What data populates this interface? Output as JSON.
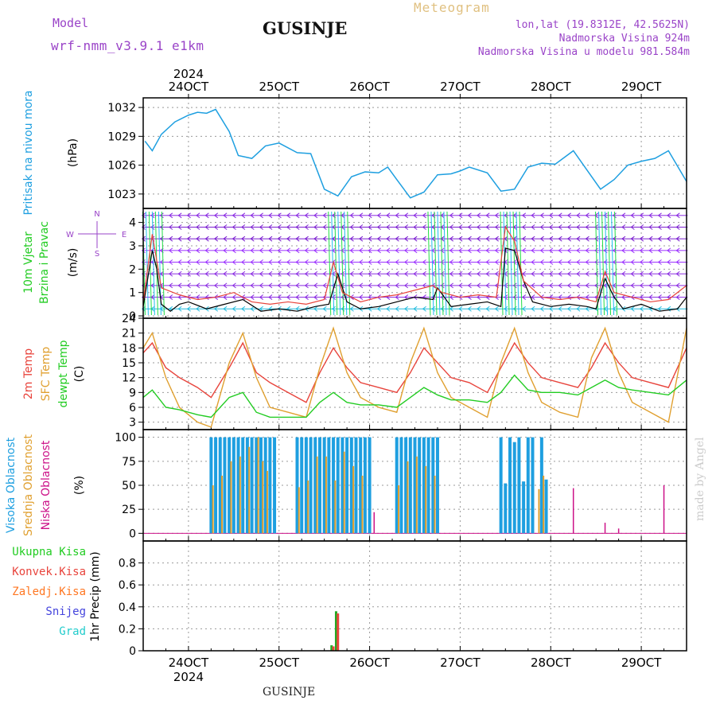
{
  "header": {
    "model_label": "Model",
    "model_name": "wrf-nmm_v3.9.1  e1km",
    "title": "GUSINJE",
    "meteogram": "Meteogram",
    "lonlat": "lon,lat (19.8312E, 42.5625N)",
    "elevation": "Nadmorska Visina 924m",
    "model_elevation": "Nadmorska Visina u modelu 981.584m"
  },
  "footer": {
    "station": "GUSINJE",
    "watermark": "made by Angel"
  },
  "colors": {
    "pressure": "#1e9fe0",
    "temp": "#e8443c",
    "sfc": "#e0a030",
    "dew": "#22cc22",
    "high": "#1e9fe0",
    "mid": "#e0a030",
    "low": "#cc1188",
    "wind_purple": "#8a2be2",
    "precip_green": "#22aa22",
    "precip_red": "#e8443c"
  },
  "chart_data": [
    {
      "type": "line",
      "name": "pressure",
      "ylabel": [
        "Pritisak na nivou mora",
        "(hPa)"
      ],
      "x_ticks": [
        "24OCT",
        "25OCT",
        "26OCT",
        "27OCT",
        "28OCT",
        "29OCT"
      ],
      "top_year": "2024",
      "bottom_year": "2024",
      "x_range_days": [
        23.5,
        29.5
      ],
      "ylim": [
        1021.5,
        1033
      ],
      "yticks": [
        1023,
        1026,
        1029,
        1032
      ],
      "grid": true,
      "series": [
        {
          "x": [
            23.52,
            23.6,
            23.7,
            23.85,
            24.0,
            24.1,
            24.2,
            24.3,
            24.45,
            24.55,
            24.7,
            24.85,
            25.0,
            25.2,
            25.35,
            25.5,
            25.65,
            25.8,
            25.95,
            26.1,
            26.2,
            26.3,
            26.45,
            26.6,
            26.75,
            26.9,
            27.0,
            27.1,
            27.3,
            27.45,
            27.6,
            27.75,
            27.9,
            28.05,
            28.25,
            28.4,
            28.55,
            28.7,
            28.85,
            29.0,
            29.15,
            29.3,
            29.5
          ],
          "y": [
            1028.5,
            1027.5,
            1029.2,
            1030.5,
            1031.2,
            1031.5,
            1031.4,
            1031.8,
            1029.5,
            1027,
            1026.7,
            1028,
            1028.3,
            1027.3,
            1027.2,
            1023.5,
            1022.8,
            1024.8,
            1025.3,
            1025.2,
            1025.8,
            1024.5,
            1022.6,
            1023.2,
            1025,
            1025.1,
            1025.4,
            1025.8,
            1025.2,
            1023.3,
            1023.5,
            1025.8,
            1026.2,
            1026.1,
            1027.5,
            1025.5,
            1023.5,
            1024.5,
            1026,
            1026.4,
            1026.7,
            1027.5,
            1024.3
          ]
        }
      ]
    },
    {
      "type": "line",
      "name": "wind",
      "ylabel": [
        "10m Vjetar",
        "Brzina i Pravac",
        "(m/s)"
      ],
      "compass": {
        "n": "N",
        "s": "S",
        "e": "E",
        "w": "W"
      },
      "ylim": [
        -0.1,
        4.6
      ],
      "yticks": [
        0,
        1,
        2,
        3,
        4
      ],
      "grid": true,
      "series": [
        {
          "name": "speed",
          "x": [
            23.5,
            23.6,
            23.65,
            23.7,
            23.8,
            23.9,
            24.0,
            24.2,
            24.4,
            24.6,
            24.8,
            25.0,
            25.2,
            25.4,
            25.55,
            25.65,
            25.75,
            25.9,
            26.1,
            26.3,
            26.5,
            26.7,
            26.75,
            26.9,
            27.1,
            27.3,
            27.45,
            27.5,
            27.6,
            27.7,
            27.8,
            28.0,
            28.2,
            28.4,
            28.5,
            28.6,
            28.7,
            28.8,
            29.0,
            29.2,
            29.4,
            29.5
          ],
          "y": [
            0.4,
            2.8,
            2.0,
            0.5,
            0.2,
            0.5,
            0.6,
            0.3,
            0.5,
            0.7,
            0.2,
            0.3,
            0.2,
            0.4,
            0.5,
            1.8,
            0.6,
            0.3,
            0.4,
            0.6,
            0.8,
            0.7,
            1.2,
            0.4,
            0.5,
            0.6,
            0.4,
            2.9,
            2.8,
            1.5,
            0.6,
            0.4,
            0.5,
            0.4,
            0.3,
            1.6,
            0.8,
            0.3,
            0.5,
            0.2,
            0.3,
            0.8
          ]
        },
        {
          "name": "gust",
          "x": [
            23.5,
            23.6,
            23.7,
            23.9,
            24.1,
            24.3,
            24.5,
            24.7,
            24.9,
            25.1,
            25.3,
            25.5,
            25.6,
            25.7,
            25.9,
            26.1,
            26.3,
            26.5,
            26.7,
            26.8,
            27.0,
            27.2,
            27.4,
            27.5,
            27.6,
            27.7,
            27.9,
            28.1,
            28.3,
            28.5,
            28.6,
            28.7,
            28.9,
            29.1,
            29.3,
            29.5
          ],
          "y": [
            0.6,
            3.5,
            1.2,
            0.9,
            0.7,
            0.8,
            1.0,
            0.6,
            0.5,
            0.6,
            0.5,
            0.7,
            2.3,
            1.0,
            0.6,
            0.8,
            0.9,
            1.1,
            1.3,
            1.0,
            0.8,
            0.9,
            0.8,
            3.8,
            3.2,
            1.5,
            0.8,
            0.7,
            0.8,
            0.6,
            1.9,
            1.0,
            0.8,
            0.6,
            0.7,
            1.3
          ]
        }
      ]
    },
    {
      "type": "line",
      "name": "temperature",
      "ylabel": [
        "2m Temp",
        "SFC Temp",
        "dewpt Temp",
        "(C)"
      ],
      "ylim": [
        1.5,
        24
      ],
      "yticks": [
        3,
        6,
        9,
        12,
        15,
        18,
        21,
        24
      ],
      "grid": true,
      "series": [
        {
          "name": "2m Temp",
          "x": [
            23.5,
            23.6,
            23.75,
            23.9,
            24.1,
            24.25,
            24.45,
            24.6,
            24.75,
            24.9,
            25.1,
            25.3,
            25.45,
            25.6,
            25.75,
            25.9,
            26.1,
            26.3,
            26.45,
            26.6,
            26.75,
            26.9,
            27.1,
            27.3,
            27.45,
            27.6,
            27.75,
            27.9,
            28.1,
            28.3,
            28.45,
            28.6,
            28.75,
            28.9,
            29.1,
            29.3,
            29.5
          ],
          "y": [
            17,
            19,
            14,
            12,
            10,
            8,
            14,
            19,
            13,
            11,
            9,
            7,
            13,
            18,
            14,
            11,
            10,
            9,
            13,
            18,
            15,
            12,
            11,
            9,
            14,
            19,
            15,
            12,
            11,
            10,
            14,
            19,
            15,
            12,
            11,
            10,
            18
          ]
        },
        {
          "name": "SFC Temp",
          "x": [
            23.5,
            23.6,
            23.75,
            23.9,
            24.1,
            24.25,
            24.45,
            24.6,
            24.75,
            24.9,
            25.1,
            25.3,
            25.45,
            25.6,
            25.75,
            25.9,
            26.1,
            26.3,
            26.45,
            26.6,
            26.75,
            26.9,
            27.1,
            27.3,
            27.45,
            27.6,
            27.75,
            27.9,
            28.1,
            28.3,
            28.45,
            28.6,
            28.75,
            28.9,
            29.1,
            29.3,
            29.5
          ],
          "y": [
            18,
            21,
            12,
            6,
            3,
            2,
            15,
            21,
            12,
            6,
            5,
            4,
            14,
            22,
            13,
            8,
            6,
            5,
            15,
            22,
            13,
            8,
            6,
            4,
            15,
            22,
            13,
            7,
            5,
            4,
            16,
            22,
            13,
            7,
            5,
            3,
            22
          ]
        },
        {
          "name": "dewpt Temp",
          "x": [
            23.5,
            23.6,
            23.75,
            23.9,
            24.1,
            24.25,
            24.45,
            24.6,
            24.75,
            24.9,
            25.1,
            25.3,
            25.45,
            25.6,
            25.75,
            25.9,
            26.1,
            26.3,
            26.45,
            26.6,
            26.75,
            26.9,
            27.1,
            27.3,
            27.45,
            27.6,
            27.75,
            27.9,
            28.1,
            28.3,
            28.45,
            28.6,
            28.75,
            28.9,
            29.1,
            29.3,
            29.5
          ],
          "y": [
            8,
            9.5,
            6,
            5.5,
            4.5,
            4,
            8,
            9,
            5,
            4,
            4,
            4,
            7,
            9,
            7,
            6.5,
            6.5,
            6,
            8,
            10,
            8.5,
            7.5,
            7.5,
            7,
            9,
            12.5,
            9.5,
            9,
            9,
            8.5,
            10,
            11.5,
            10,
            9.5,
            9,
            8.5,
            11.5
          ]
        }
      ]
    },
    {
      "type": "bar",
      "name": "cloud",
      "ylabel": [
        "Visoka Oblacnost",
        "Srednja Oblacnost",
        "Niska Oblacnost",
        "(%)"
      ],
      "ylim": [
        -8,
        108
      ],
      "yticks": [
        0,
        25,
        50,
        75,
        100
      ],
      "grid": true,
      "series": [
        {
          "name": "Visoka Oblacnost",
          "x": [
            24.25,
            24.3,
            24.35,
            24.4,
            24.45,
            24.5,
            24.55,
            24.6,
            24.65,
            24.7,
            24.75,
            24.8,
            24.85,
            24.9,
            24.95,
            25.2,
            25.25,
            25.3,
            25.35,
            25.4,
            25.45,
            25.5,
            25.55,
            25.6,
            25.65,
            25.7,
            25.75,
            25.8,
            25.85,
            25.9,
            25.95,
            26.0,
            26.3,
            26.35,
            26.4,
            26.45,
            26.5,
            26.55,
            26.6,
            26.65,
            26.7,
            26.75,
            27.45,
            27.5,
            27.55,
            27.6,
            27.65,
            27.7,
            27.75,
            27.8,
            27.9,
            27.95
          ],
          "y": [
            100,
            100,
            100,
            100,
            100,
            100,
            100,
            100,
            100,
            100,
            100,
            100,
            100,
            100,
            100,
            100,
            100,
            100,
            100,
            100,
            100,
            100,
            100,
            100,
            100,
            100,
            100,
            100,
            100,
            100,
            100,
            100,
            100,
            100,
            100,
            100,
            100,
            100,
            100,
            100,
            100,
            100,
            100,
            52,
            100,
            95,
            100,
            54,
            100,
            100,
            100,
            56
          ]
        },
        {
          "name": "Srednja Oblacnost",
          "x": [
            24.27,
            24.37,
            24.47,
            24.57,
            24.67,
            24.77,
            24.82,
            24.87,
            25.22,
            25.32,
            25.42,
            25.52,
            25.62,
            25.72,
            25.82,
            25.92,
            26.32,
            26.42,
            26.52,
            26.62,
            26.72,
            27.87,
            27.92
          ],
          "y": [
            50,
            60,
            75,
            80,
            90,
            100,
            75,
            65,
            48,
            55,
            80,
            80,
            55,
            85,
            70,
            60,
            50,
            75,
            80,
            70,
            60,
            46,
            60
          ]
        },
        {
          "name": "Niska Oblacnost",
          "x": [
            26.05,
            28.25,
            28.6,
            28.75,
            29.25
          ],
          "y": [
            22,
            47,
            11,
            5,
            50
          ]
        }
      ]
    },
    {
      "type": "bar",
      "name": "precipitation",
      "legend": [
        "Ukupna Kisa",
        "Konvek.Kisa",
        "Zaledj.Kisa",
        "Snijeg",
        "Grad"
      ],
      "ylabel": "1hr Precip (mm)",
      "ylim": [
        0,
        1.0
      ],
      "yticks": [
        0,
        0.2,
        0.4,
        0.6,
        0.8
      ],
      "grid": true,
      "series": [
        {
          "name": "Ukupna Kisa",
          "x": [
            25.58,
            25.63
          ],
          "y": [
            0.05,
            0.36
          ]
        },
        {
          "name": "Konvek.Kisa",
          "x": [
            25.6,
            25.65
          ],
          "y": [
            0.04,
            0.34
          ]
        }
      ]
    }
  ]
}
